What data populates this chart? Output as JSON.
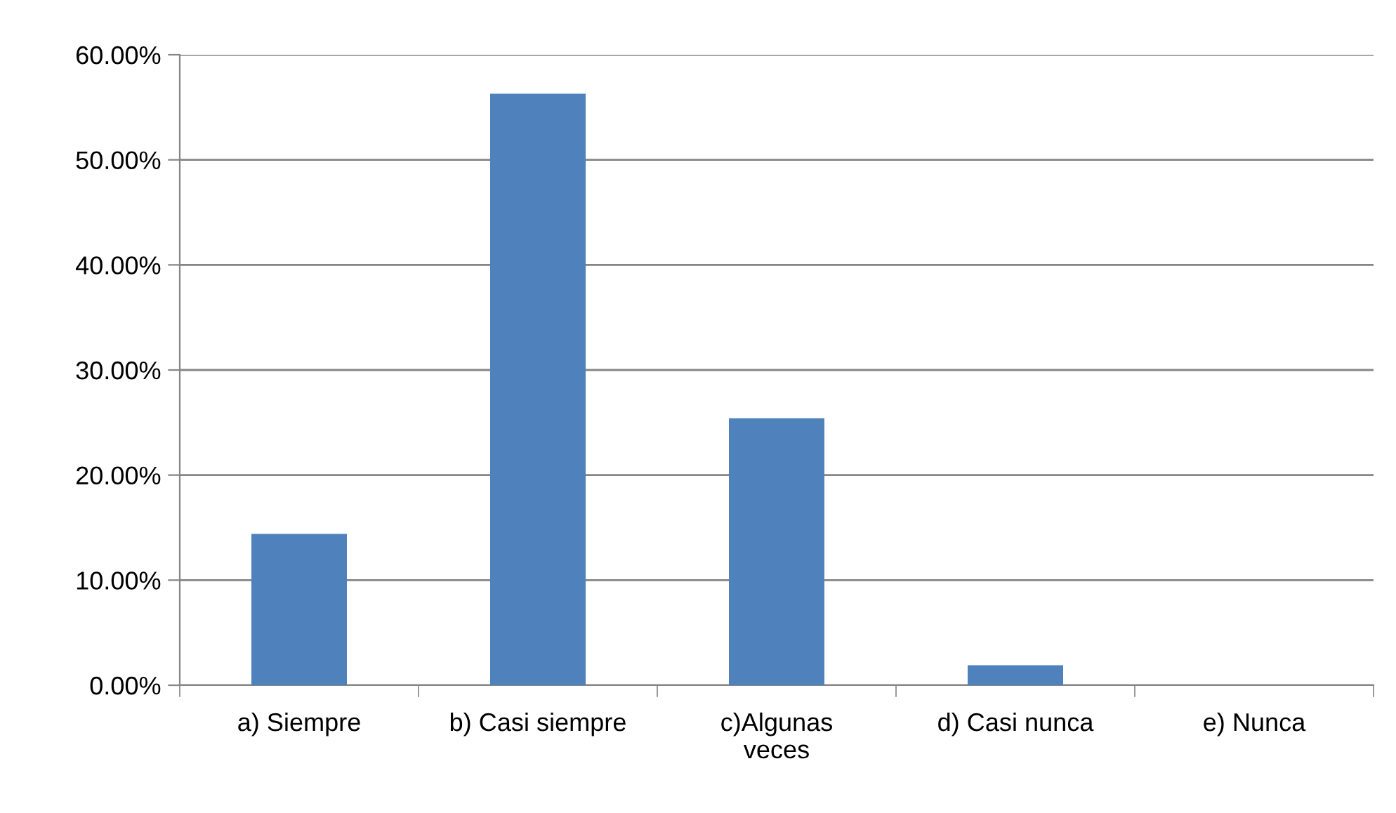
{
  "chart_data": {
    "type": "bar",
    "categories": [
      "a) Siempre",
      "b) Casi siempre",
      "c)Algunas\nveces",
      "d) Casi nunca",
      "e) Nunca"
    ],
    "values": [
      14.4,
      56.3,
      25.4,
      1.9,
      0
    ],
    "color": "#4f81bd",
    "ylim": [
      0,
      60
    ],
    "yticks": [
      {
        "value": 0,
        "label": "0.00%"
      },
      {
        "value": 10,
        "label": "10.00%"
      },
      {
        "value": 20,
        "label": "20.00%"
      },
      {
        "value": 30,
        "label": "30.00%"
      },
      {
        "value": 40,
        "label": "40.00%"
      },
      {
        "value": 50,
        "label": "50.00%"
      },
      {
        "value": 60,
        "label": "60.00%"
      }
    ],
    "grid": "y",
    "legend": false
  }
}
